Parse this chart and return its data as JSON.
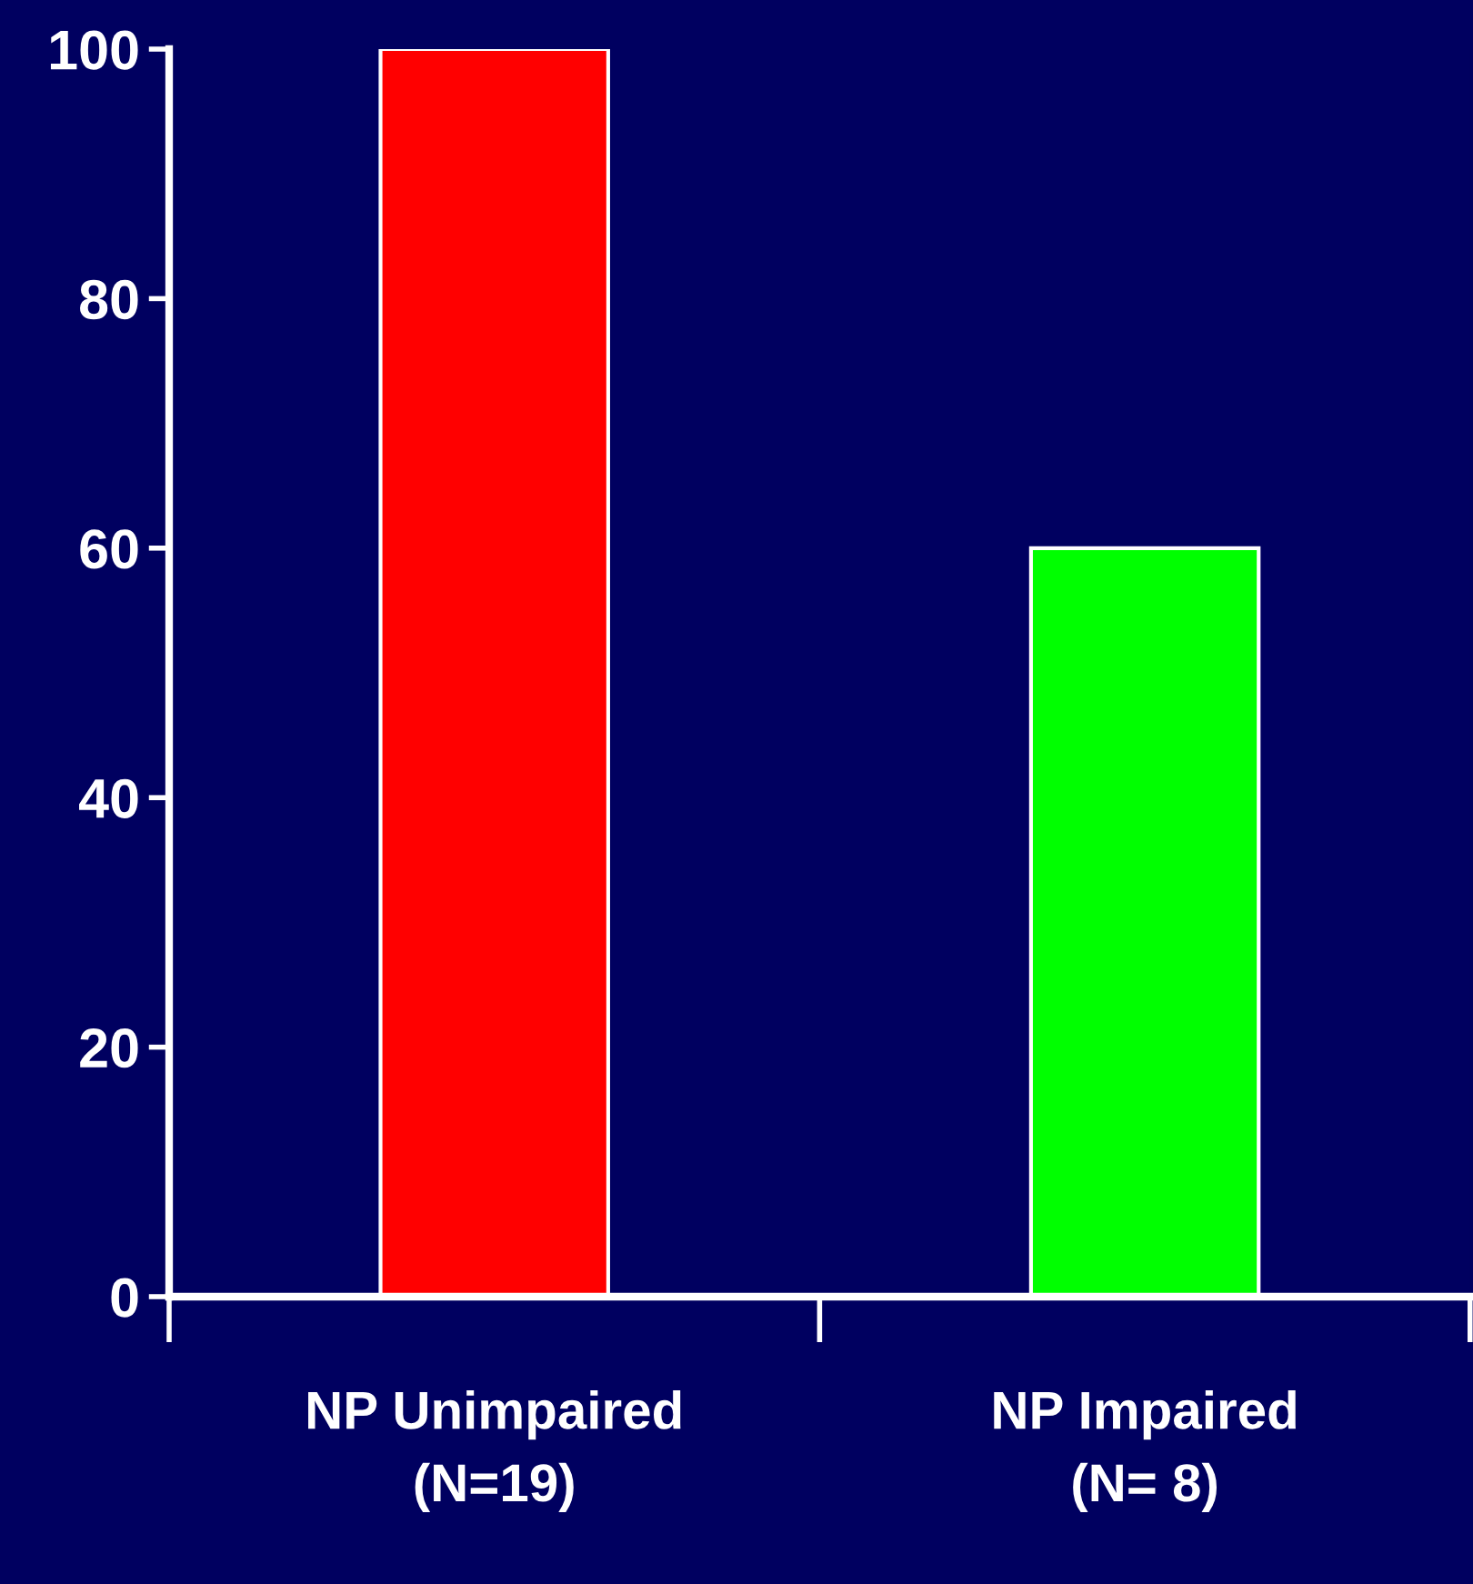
{
  "chart_data": {
    "type": "bar",
    "categories": [
      "NP Unimpaired\n(N=19)",
      "NP Impaired\n(N= 8)"
    ],
    "values": [
      100,
      60
    ],
    "colors": [
      "#ff0000",
      "#00ff00"
    ],
    "ylim": [
      0,
      100
    ],
    "yticks": [
      0,
      20,
      40,
      60,
      80,
      100
    ],
    "grid": false,
    "legend": false
  }
}
